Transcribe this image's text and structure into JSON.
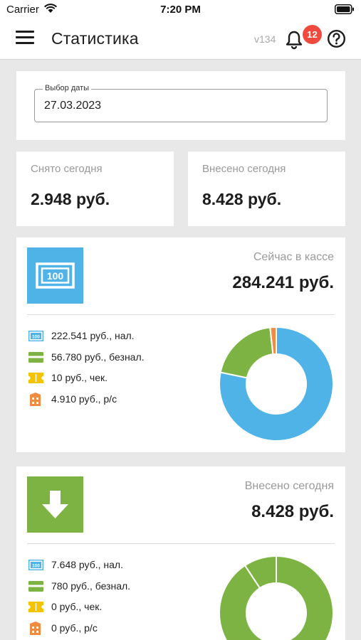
{
  "status_bar": {
    "carrier": "Carrier",
    "time": "7:20 PM"
  },
  "header": {
    "title": "Статистика",
    "version": "v134",
    "notification_count": "12"
  },
  "date_picker": {
    "label": "Выбор даты",
    "value": "27.03.2023"
  },
  "summary": {
    "withdrawn": {
      "label": "Снято сегодня",
      "value": "2.948 руб."
    },
    "deposited": {
      "label": "Внесено сегодня",
      "value": "8.428 руб."
    }
  },
  "cash_register": {
    "title": "Сейчас в кассе",
    "total": "284.241 руб.",
    "icon": "banknote-icon",
    "color": "#4fb3e8",
    "breakdown": [
      {
        "icon": "cash-icon",
        "text": "222.541 руб., нал."
      },
      {
        "icon": "card-icon",
        "text": "56.780 руб., безнал."
      },
      {
        "icon": "check-icon",
        "text": "10 руб., чек."
      },
      {
        "icon": "account-icon",
        "text": "4.910 руб., р/с"
      }
    ]
  },
  "deposited_today": {
    "title": "Внесено сегодня",
    "total": "8.428 руб.",
    "icon": "arrow-down-icon",
    "color": "#7cb342",
    "breakdown": [
      {
        "icon": "cash-icon",
        "text": "7.648 руб., нал."
      },
      {
        "icon": "card-icon",
        "text": "780 руб., безнал."
      },
      {
        "icon": "check-icon",
        "text": "0 руб., чек."
      },
      {
        "icon": "account-icon",
        "text": "0 руб., р/с"
      }
    ]
  },
  "chart_data": [
    {
      "type": "pie",
      "categories": [
        "нал.",
        "безнал.",
        "чек.",
        "р/с"
      ],
      "values": [
        222541,
        56780,
        10,
        4910
      ],
      "colors": [
        "#4fb3e8",
        "#7cb342",
        "#f5c400",
        "#f28b42"
      ]
    },
    {
      "type": "pie",
      "categories": [
        "нал.",
        "безнал.",
        "чек.",
        "р/с"
      ],
      "values": [
        7648,
        780,
        0,
        0
      ],
      "colors": [
        "#7cb342",
        "#7cb342",
        "#f5c400",
        "#f28b42"
      ]
    }
  ]
}
